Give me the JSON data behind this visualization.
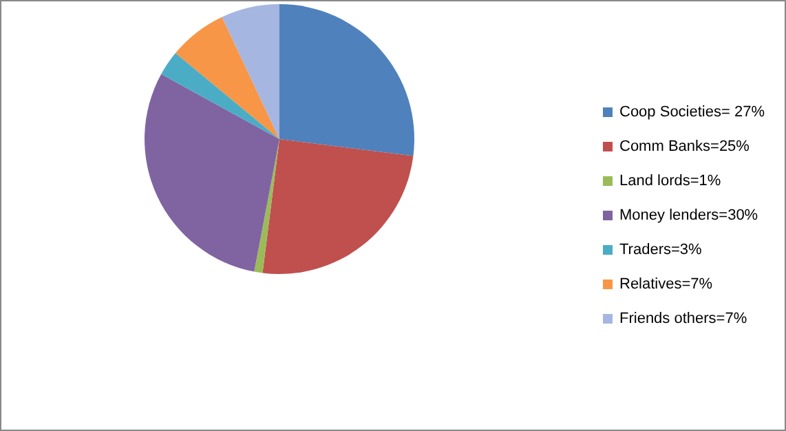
{
  "chart_data": {
    "type": "pie",
    "categories": [
      "Coop Societies= 27%",
      "Comm Banks=25%",
      "Land lords=1%",
      "Money lenders=30%",
      "Traders=3%",
      "Relatives=7%",
      "Friends others=7%"
    ],
    "values": [
      27,
      25,
      1,
      30,
      3,
      7,
      7
    ],
    "colors": [
      "#4f81bd",
      "#c0504d",
      "#9bbb59",
      "#8064a2",
      "#4bacc6",
      "#f79646",
      "#a5b6e0"
    ],
    "legend": "right"
  }
}
